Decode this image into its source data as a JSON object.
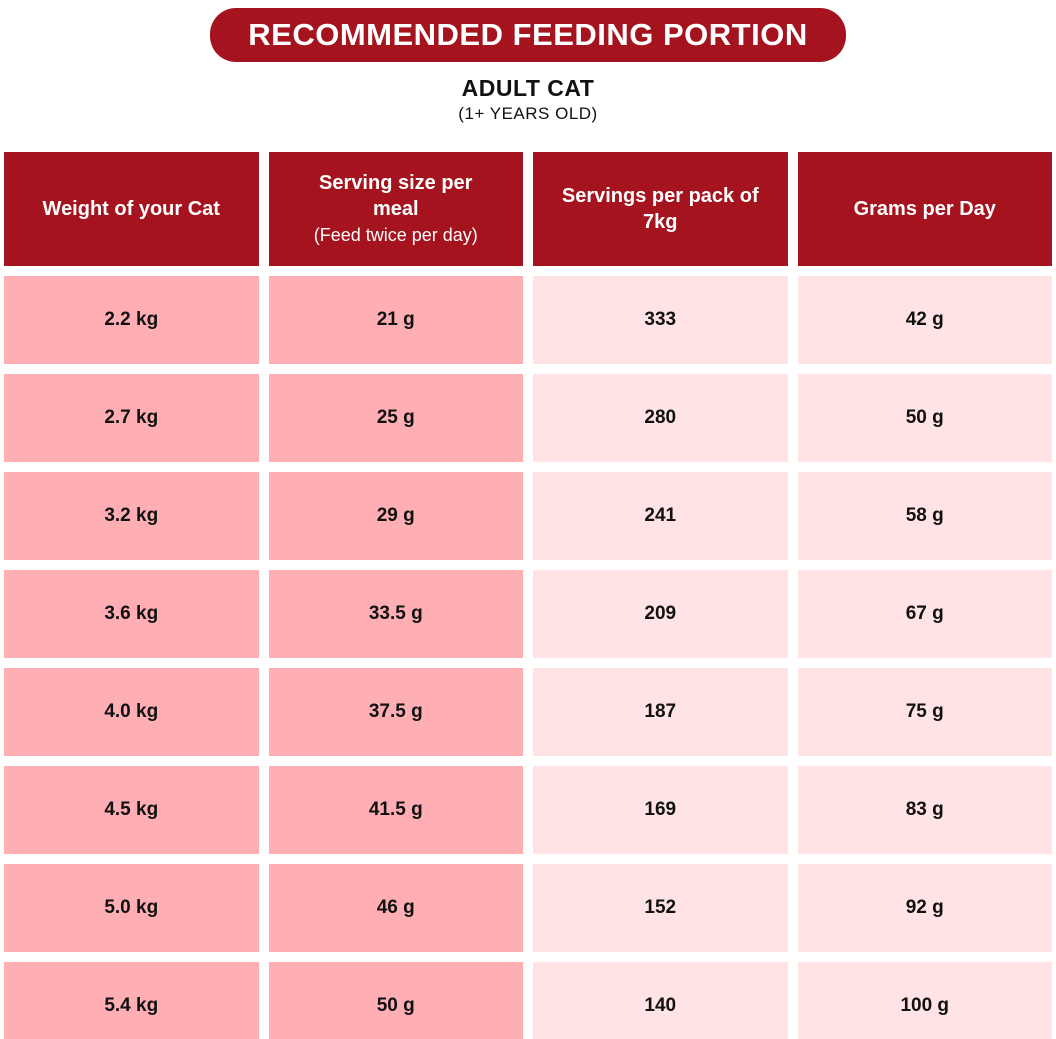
{
  "page": {
    "title": "RECOMMENDED FEEDING PORTION",
    "subtitle": "ADULT CAT",
    "subtitle_note": "(1+ YEARS OLD)"
  },
  "colors": {
    "banner_red": "#a5131e",
    "header_red": "#a5131e",
    "pink_dark": "#ffafb4",
    "pink_light": "#ffe3e5",
    "text_black": "#111111",
    "header_text": "#ffffff"
  },
  "chart_data": {
    "type": "table",
    "title": "RECOMMENDED FEEDING PORTION",
    "subtitle": "ADULT CAT (1+ YEARS OLD)",
    "columns": [
      {
        "title": "Weight of your Cat",
        "subtitle": ""
      },
      {
        "title": "Serving size per meal",
        "subtitle": "(Feed twice per day)"
      },
      {
        "title": "Servings per pack of 7kg",
        "subtitle": ""
      },
      {
        "title": "Grams per Day",
        "subtitle": ""
      }
    ],
    "rows": [
      [
        "2.2 kg",
        "21 g",
        "333",
        "42 g"
      ],
      [
        "2.7 kg",
        "25 g",
        "280",
        "50 g"
      ],
      [
        "3.2 kg",
        "29 g",
        "241",
        "58 g"
      ],
      [
        "3.6 kg",
        "33.5 g",
        "209",
        "67 g"
      ],
      [
        "4.0 kg",
        "37.5 g",
        "187",
        "75 g"
      ],
      [
        "4.5 kg",
        "41.5 g",
        "169",
        "83 g"
      ],
      [
        "5.0 kg",
        "46 g",
        "152",
        "92 g"
      ],
      [
        "5.4 kg",
        "50 g",
        "140",
        "100 g"
      ]
    ]
  }
}
